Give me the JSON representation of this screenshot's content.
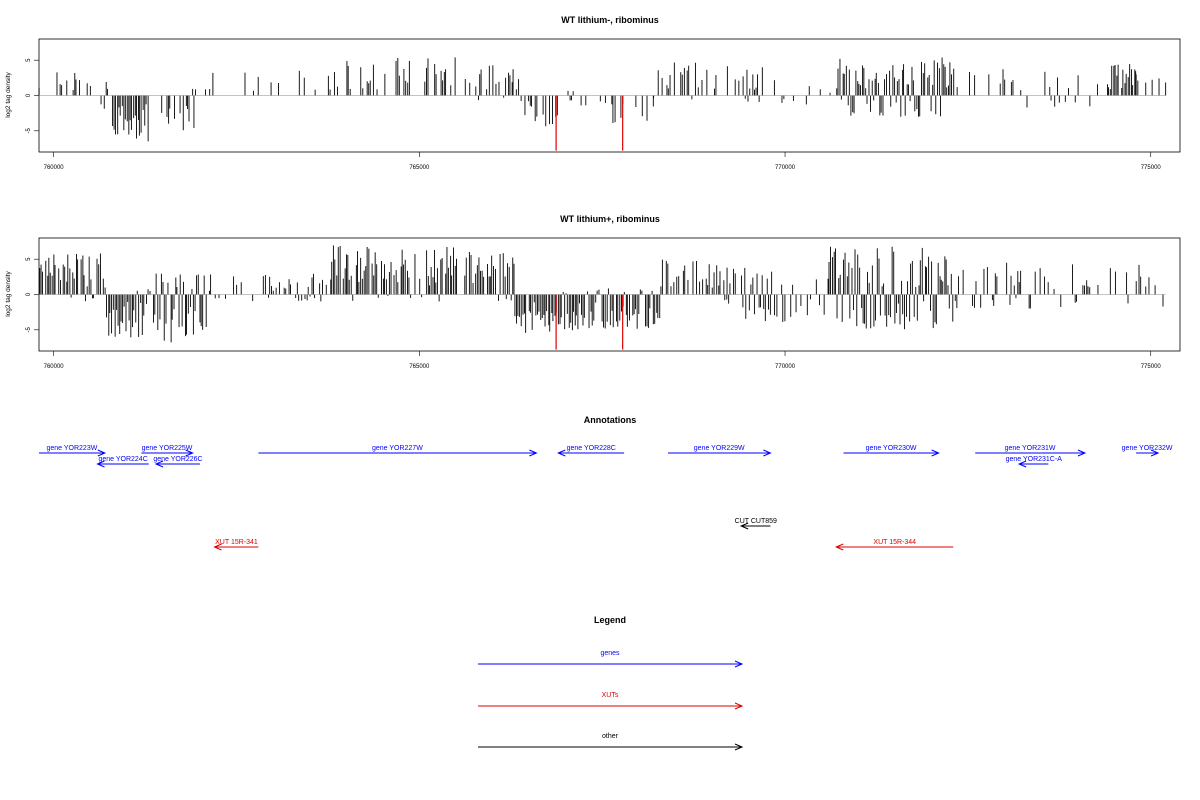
{
  "chart_data": [
    {
      "type": "bar",
      "title": "WT lithium-, ribominus",
      "xlabel": "",
      "ylabel": "log2 tag density",
      "xlim": [
        759800,
        775400
      ],
      "ylim": [
        -8,
        8
      ],
      "x_ticks": [
        760000,
        765000,
        770000,
        775000
      ],
      "x_tick_labels": [
        "760000",
        "765000",
        "770000",
        "775000"
      ],
      "y_ticks": [
        -5,
        0,
        5
      ],
      "y_tick_labels": [
        "-5",
        "0",
        "5"
      ],
      "grid": false,
      "positive_color": "#000000",
      "negative_color": "#000000",
      "marker_color": "#dd0000",
      "blocks": [
        {
          "start": 759800,
          "end": 760600,
          "min": 0,
          "max": 3.5,
          "density": 0.35
        },
        {
          "start": 760600,
          "end": 760800,
          "min": -2,
          "max": 2.5,
          "density": 0.3
        },
        {
          "start": 760800,
          "end": 761300,
          "min": -6.5,
          "max": 0,
          "density": 0.95
        },
        {
          "start": 761300,
          "end": 761500,
          "min": -3,
          "max": 1,
          "density": 0.3
        },
        {
          "start": 761500,
          "end": 762000,
          "min": -5,
          "max": 1,
          "density": 0.55
        },
        {
          "start": 762000,
          "end": 764000,
          "min": 0,
          "max": 3.5,
          "density": 0.2
        },
        {
          "start": 764000,
          "end": 765800,
          "min": 0,
          "max": 5.5,
          "density": 0.3
        },
        {
          "start": 765800,
          "end": 766400,
          "min": -1,
          "max": 4.5,
          "density": 0.55
        },
        {
          "start": 766400,
          "end": 766900,
          "min": -4.5,
          "max": 0.5,
          "density": 0.5
        },
        {
          "start": 766900,
          "end": 767600,
          "min": -1.5,
          "max": 1,
          "density": 0.25
        },
        {
          "start": 767600,
          "end": 768200,
          "min": -4,
          "max": 1,
          "density": 0.45
        },
        {
          "start": 768200,
          "end": 769800,
          "min": -1,
          "max": 5,
          "density": 0.5
        },
        {
          "start": 769800,
          "end": 770700,
          "min": -2,
          "max": 2.5,
          "density": 0.15
        },
        {
          "start": 770700,
          "end": 772300,
          "min": -3,
          "max": 5.5,
          "density": 0.95
        },
        {
          "start": 772300,
          "end": 774400,
          "min": -2,
          "max": 4,
          "density": 0.2
        },
        {
          "start": 774400,
          "end": 774800,
          "min": 0,
          "max": 4.5,
          "density": 0.95
        },
        {
          "start": 774800,
          "end": 775200,
          "min": 0,
          "max": 4,
          "density": 0.4
        }
      ],
      "markers": [
        {
          "x": 766870,
          "value": -7.8
        },
        {
          "x": 767780,
          "value": -7.8
        }
      ]
    },
    {
      "type": "bar",
      "title": "WT lithium+, ribominus",
      "xlabel": "",
      "ylabel": "log2 tag density",
      "xlim": [
        759800,
        775400
      ],
      "ylim": [
        -8,
        8
      ],
      "x_ticks": [
        760000,
        765000,
        770000,
        775000
      ],
      "x_tick_labels": [
        "760000",
        "765000",
        "770000",
        "775000"
      ],
      "y_ticks": [
        -5,
        0,
        5
      ],
      "y_tick_labels": [
        "-5",
        "0",
        "5"
      ],
      "grid": false,
      "positive_color": "#000000",
      "negative_color": "#000000",
      "marker_color": "#dd0000",
      "blocks": [
        {
          "start": 759800,
          "end": 760700,
          "min": -1,
          "max": 6,
          "density": 0.85
        },
        {
          "start": 760700,
          "end": 761400,
          "min": -6.5,
          "max": 1,
          "density": 0.95
        },
        {
          "start": 761400,
          "end": 762100,
          "min": -7,
          "max": 3,
          "density": 0.95
        },
        {
          "start": 762100,
          "end": 763800,
          "min": -1,
          "max": 3,
          "density": 0.4
        },
        {
          "start": 763800,
          "end": 766300,
          "min": -1,
          "max": 7,
          "density": 0.8
        },
        {
          "start": 766300,
          "end": 767100,
          "min": -6,
          "max": 0.5,
          "density": 0.95
        },
        {
          "start": 767100,
          "end": 768300,
          "min": -5,
          "max": 1,
          "density": 0.9
        },
        {
          "start": 768300,
          "end": 769200,
          "min": -1,
          "max": 5,
          "density": 0.7
        },
        {
          "start": 769200,
          "end": 770600,
          "min": -4,
          "max": 4.5,
          "density": 0.65
        },
        {
          "start": 770600,
          "end": 772300,
          "min": -5,
          "max": 7,
          "density": 1.0
        },
        {
          "start": 772300,
          "end": 775200,
          "min": -2,
          "max": 4.5,
          "density": 0.35
        }
      ],
      "markers": [
        {
          "x": 766870,
          "value": -7.8
        },
        {
          "x": 767780,
          "value": -7.8
        }
      ]
    }
  ],
  "annotations": {
    "title": "Annotations",
    "x_range": [
      759800,
      775400
    ],
    "items": [
      {
        "label": "gene YOR223W",
        "start": 759800,
        "end": 760700,
        "strand": "+",
        "track": "genes",
        "color": "#0000ff"
      },
      {
        "label": "gene YOR224C",
        "start": 760600,
        "end": 761300,
        "strand": "-",
        "track": "genes",
        "color": "#0000ff"
      },
      {
        "label": "gene YOR225W",
        "start": 761200,
        "end": 761900,
        "strand": "+",
        "track": "genes",
        "color": "#0000ff"
      },
      {
        "label": "gene YOR226C",
        "start": 761400,
        "end": 762000,
        "strand": "-",
        "track": "genes",
        "color": "#0000ff"
      },
      {
        "label": "gene YOR227W",
        "start": 762800,
        "end": 766600,
        "strand": "+",
        "track": "genes",
        "color": "#0000ff"
      },
      {
        "label": "gene YOR228C",
        "start": 766900,
        "end": 767800,
        "strand": "-",
        "track": "genes",
        "color": "#0000ff"
      },
      {
        "label": "gene YOR229W",
        "start": 768400,
        "end": 769800,
        "strand": "+",
        "track": "genes",
        "color": "#0000ff"
      },
      {
        "label": "gene YOR230W",
        "start": 770800,
        "end": 772100,
        "strand": "+",
        "track": "genes",
        "color": "#0000ff"
      },
      {
        "label": "gene YOR231W",
        "start": 772600,
        "end": 774100,
        "strand": "+",
        "track": "genes",
        "color": "#0000ff"
      },
      {
        "label": "gene YOR231C-A",
        "start": 773200,
        "end": 773600,
        "strand": "-",
        "track": "genes",
        "color": "#0000ff"
      },
      {
        "label": "gene YOR232W",
        "start": 774800,
        "end": 775100,
        "strand": "+",
        "track": "genes",
        "color": "#0000ff"
      },
      {
        "label": "CUT CUT859",
        "start": 769400,
        "end": 769800,
        "strand": "-",
        "track": "other",
        "color": "#000000"
      },
      {
        "label": "XUT 15R-341",
        "start": 762200,
        "end": 762800,
        "strand": "-",
        "track": "xuts",
        "color": "#dd0000"
      },
      {
        "label": "XUT 15R-344",
        "start": 770700,
        "end": 772300,
        "strand": "-",
        "track": "xuts",
        "color": "#dd0000"
      }
    ]
  },
  "legend": {
    "title": "Legend",
    "entries": [
      {
        "label": "genes",
        "color": "#0000ff"
      },
      {
        "label": "XUTs",
        "color": "#dd0000"
      },
      {
        "label": "other",
        "color": "#000000"
      }
    ]
  }
}
